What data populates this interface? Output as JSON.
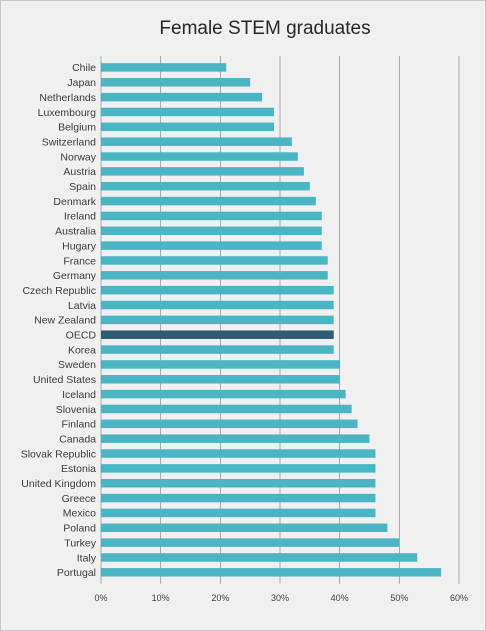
{
  "chart_data": {
    "type": "bar",
    "orientation": "horizontal",
    "title": "Female STEM graduates",
    "xlabel": "",
    "ylabel": "",
    "xlim": [
      0,
      60
    ],
    "ticks": [
      "0%",
      "10%",
      "20%",
      "30%",
      "40%",
      "50%",
      "60%"
    ],
    "tick_values": [
      0,
      10,
      20,
      30,
      40,
      50,
      60
    ],
    "grid": "vertical",
    "categories": [
      "Chile",
      "Japan",
      "Netherlands",
      "Luxembourg",
      "Belgium",
      "Switzerland",
      "Norway",
      "Austria",
      "Spain",
      "Denmark",
      "Ireland",
      "Australia",
      "Hugary",
      "France",
      "Germany",
      "Czech Republic",
      "Latvia",
      "New Zealand",
      "OECD",
      "Korea",
      "Sweden",
      "United States",
      "Iceland",
      "Slovenia",
      "Finland",
      "Canada",
      "Slovak Republic",
      "Estonia",
      "United Kingdom",
      "Greece",
      "Mexico",
      "Poland",
      "Turkey",
      "Italy",
      "Portugal"
    ],
    "values": [
      21,
      25,
      27,
      29,
      29,
      32,
      33,
      34,
      35,
      36,
      37,
      37,
      37,
      38,
      38,
      39,
      39,
      39,
      39,
      39,
      40,
      40,
      41,
      42,
      43,
      45,
      46,
      46,
      46,
      46,
      46,
      48,
      50,
      53,
      57
    ],
    "highlight": "OECD",
    "colors": {
      "bar": "#4bb5c4",
      "highlight": "#2e5c72",
      "background": "#f0f0f0",
      "gridline": "#8a8a8a"
    }
  }
}
